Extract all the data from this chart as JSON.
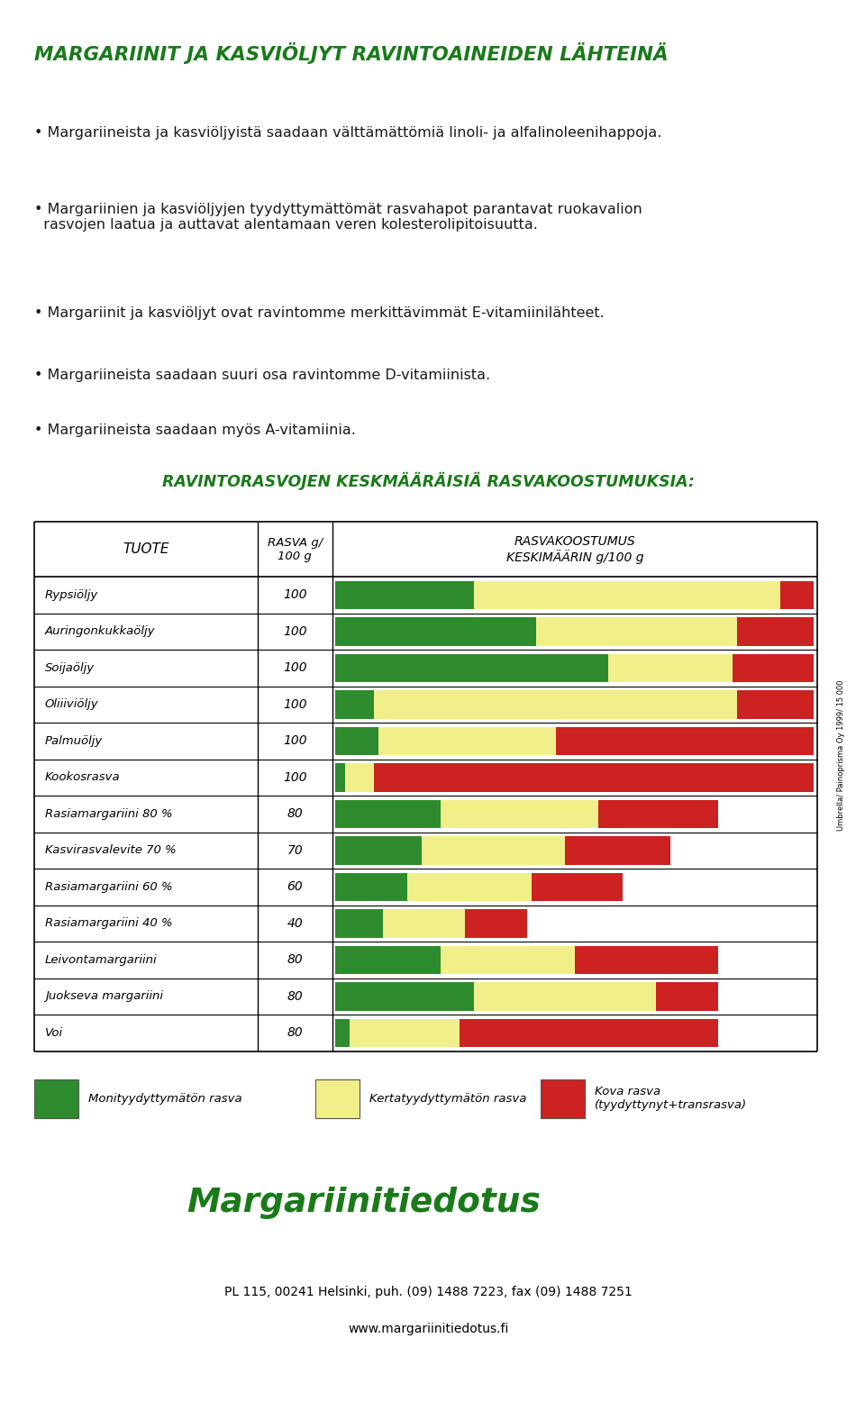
{
  "title": "MARGARIINIT JA KASVIÖLJYT RAVINTOAINEIDEN LÄHTEINÄ",
  "subtitle_lines": [
    "Margariineista ja kasviöljyistä saadaan välttämättömiä linoli- ja alfalinoleenihappoja.",
    "Margariinien ja kasviöljyjen tyydyttymättömät rasvahapot parantavat ruokavalion\n  rasvojen laatua ja auttavat alentamaan veren kolesterolipitoisuutta.",
    "Margariinit ja kasviöljyt ovat ravintomme merkittävimmät E-vitamiinilähteet.",
    "Margariineista saadaan suuri osa ravintomme D-vitamiinista.",
    "Margariineista saadaan myös A-vitamiinia."
  ],
  "table_title": "RAVINTORASVOJEN KESKMÄÄRÄISIÄ RASVAKOOSTUMUKSIA:",
  "col1_header": "TUOTE",
  "col2_header": "RASVA g/\n100 g",
  "col3_header": "RASVAKOOSTUMUS\nKESKIMÄÄRIN g/100 g",
  "products": [
    "Rypsiöljy",
    "Auringonkukkaöljy",
    "Soijaöljy",
    "Oliiiviöljy",
    "Palmuöljy",
    "Kookosrasva",
    "Rasiamargariini 80 %",
    "Kasvirasvalevite 70 %",
    "Rasiamargariini 60 %",
    "Rasiamargariini 40 %",
    "Leivontamargariini",
    "Juokseva margariini",
    "Voi"
  ],
  "fat_total": [
    100,
    100,
    100,
    100,
    100,
    100,
    80,
    70,
    60,
    40,
    80,
    80,
    80
  ],
  "green": [
    29,
    42,
    57,
    8,
    9,
    2,
    22,
    18,
    15,
    10,
    22,
    29,
    3
  ],
  "yellow": [
    64,
    42,
    26,
    76,
    37,
    6,
    33,
    30,
    26,
    17,
    28,
    38,
    23
  ],
  "red": [
    7,
    16,
    17,
    16,
    54,
    92,
    25,
    22,
    19,
    13,
    30,
    13,
    54
  ],
  "green_color": "#2e8b2e",
  "yellow_color": "#f0ef8a",
  "red_color": "#cc2222",
  "legend_items": [
    [
      "Monityydyttymätön rasva",
      "#2e8b2e"
    ],
    [
      "Kertatyydyttymätön rasva",
      "#f0ef8a"
    ],
    [
      "Kova rasva\n(tyydyttynyt+transrasva)",
      "#cc2222"
    ]
  ],
  "footer_logo_text": "Margariinitiedotus",
  "footer_address": "PL 115, 00241 Helsinki, puh. (09) 1488 7223, fax (09) 1488 7251",
  "footer_web": "www.margariinitiedotus.fi",
  "sidebar_text": "Umbrella/ Painoprisma Oy 1999/ 15 000",
  "title_color": "#1a7a1a",
  "table_title_color": "#1a7a1a",
  "body_font_color": "#1a1a1a",
  "bar_max": 100,
  "background_color": "#ffffff"
}
